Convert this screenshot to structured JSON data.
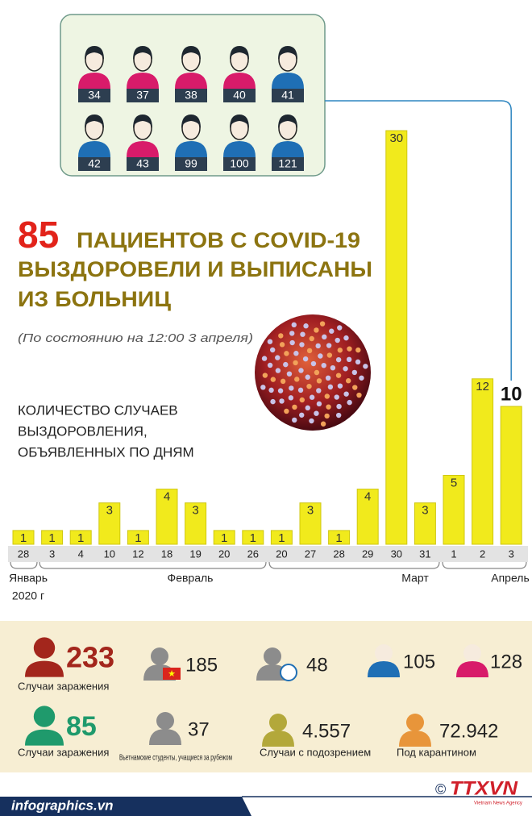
{
  "title": {
    "number": "85",
    "line1": "ПАЦИЕНТОВ С COVID-19",
    "line2": "ВЫЗДОРОВЕЛИ И ВЫПИСАНЫ",
    "line3": "ИЗ БОЛЬНИЦ"
  },
  "subtitle": "(По состоянию на 12:00 3 апреля)",
  "patients": [
    {
      "label": 34,
      "color": "#d81b6a"
    },
    {
      "label": 37,
      "color": "#d81b6a"
    },
    {
      "label": 38,
      "color": "#d81b6a"
    },
    {
      "label": 40,
      "color": "#d81b6a"
    },
    {
      "label": 41,
      "color": "#1f6fb5"
    },
    {
      "label": 42,
      "color": "#1f6fb5"
    },
    {
      "label": 43,
      "color": "#d81b6a"
    },
    {
      "label": 99,
      "color": "#1f6fb5"
    },
    {
      "label": 100,
      "color": "#1f6fb5"
    },
    {
      "label": 121,
      "color": "#1f6fb5"
    }
  ],
  "chart_data": {
    "type": "bar",
    "title": [
      "КОЛИЧЕСТВО СЛУЧАЕВ",
      "ВЫЗДОРОВЛЕНИЯ,",
      "ОБЪЯВЛЕННЫХ ПО ДНЯМ"
    ],
    "categories": [
      "28",
      "3",
      "4",
      "10",
      "12",
      "18",
      "19",
      "20",
      "26",
      "20",
      "27",
      "28",
      "29",
      "30",
      "31",
      "1",
      "2",
      "3"
    ],
    "values": [
      1,
      1,
      1,
      3,
      1,
      4,
      3,
      1,
      1,
      1,
      3,
      1,
      4,
      30,
      3,
      5,
      12,
      10
    ],
    "color": "#f1ea1c",
    "months": [
      "Январь",
      "Февраль",
      "Март",
      "Апрель"
    ],
    "year_label": "2020 г"
  },
  "stats": [
    {
      "value": 233,
      "label": "Случаи заражения",
      "color": "#a3261c"
    },
    {
      "value": 185,
      "color": "#8c8c8c"
    },
    {
      "value": 48,
      "color": "#8c8c8c"
    },
    {
      "value": 105,
      "color": "#1f6fb5"
    },
    {
      "value": 128,
      "color": "#d81b6a"
    },
    {
      "value": 85,
      "label": "Случаи заражения",
      "color": "#1f9a6c"
    },
    {
      "value": 37,
      "label": "Вьетнамские студенты, учащиеся за рубежом",
      "color": "#8c8c8c"
    },
    {
      "value": "4.557",
      "label": "Случаи с подозрением",
      "color": "#b3a83a"
    },
    {
      "value": "72.942",
      "label": "Под карантином",
      "color": "#e8953a"
    }
  ],
  "footer": {
    "site": "infographics.vn",
    "copyright": "©",
    "logo": "TTXVN",
    "agency": "Vietnam News Agency"
  }
}
